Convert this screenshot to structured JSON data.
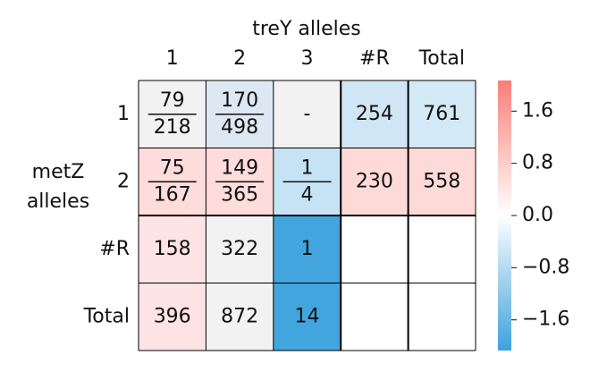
{
  "chart_data": {
    "type": "heatmap",
    "title": "treY alleles",
    "ylabel": [
      "metZ",
      "alleles"
    ],
    "xcategories": [
      "1",
      "2",
      "3",
      "#R",
      "Total"
    ],
    "ycategories": [
      "1",
      "2",
      "#R",
      "Total"
    ],
    "cells": [
      [
        {
          "num": 79,
          "den": 218,
          "color": "#f2f2f2"
        },
        {
          "num": 170,
          "den": 498,
          "color": "#dde8f2"
        },
        {
          "label": "-",
          "color": "#f2f2f2"
        },
        {
          "value": 254,
          "color": "#d0e6f5"
        },
        {
          "value": 761,
          "color": "#d4e9f6"
        }
      ],
      [
        {
          "num": 75,
          "den": 167,
          "color": "#fddcdb"
        },
        {
          "num": 149,
          "den": 365,
          "color": "#fddcdb"
        },
        {
          "num": 1,
          "den": 4,
          "color": "#c5e3f5"
        },
        {
          "value": 230,
          "color": "#fddad8"
        },
        {
          "value": 558,
          "color": "#fddad8"
        }
      ],
      [
        {
          "value": 158,
          "color": "#fde3e3"
        },
        {
          "value": 322,
          "color": "#f2f2f2"
        },
        {
          "value": 1,
          "color": "#42a5de"
        },
        null,
        null
      ],
      [
        {
          "value": 396,
          "color": "#fde3e3"
        },
        {
          "value": 872,
          "color": "#f2f2f2"
        },
        {
          "value": 14,
          "color": "#42a5de"
        },
        null,
        null
      ]
    ],
    "clim": [
      -2.07,
      2.07
    ],
    "colorbar_colors": [
      "#3fa1dc",
      "#ffffff",
      "#f87f78"
    ],
    "cticks": [
      {
        "value": -1.6,
        "label": "−1.6"
      },
      {
        "value": -0.8,
        "label": "−0.8"
      },
      {
        "value": 0,
        "label": "0.0"
      },
      0.8,
      1.6
    ]
  }
}
